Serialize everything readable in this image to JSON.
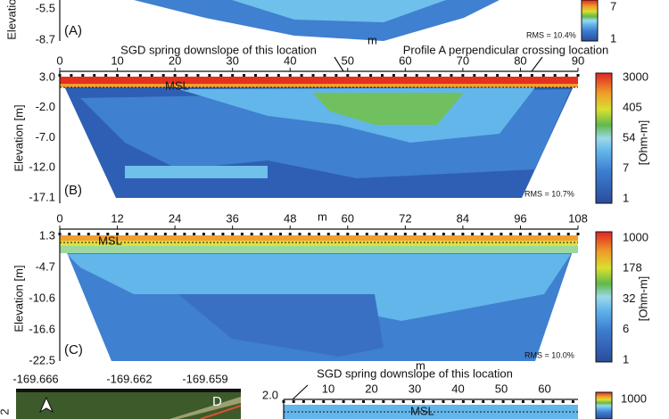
{
  "panel_a": {
    "y_axis_label": "Elevation",
    "y_ticks": [
      "-5.5",
      "-8.7"
    ],
    "label": "(A)",
    "rms": "RMS = 10.4%",
    "colorbar_ticks": [
      "7",
      "1"
    ]
  },
  "panel_b": {
    "x_axis_label": "m",
    "x_ticks": [
      "0",
      "10",
      "20",
      "30",
      "40",
      "50",
      "60",
      "70",
      "80",
      "90"
    ],
    "y_axis_label": "Elevation [m]",
    "y_ticks": [
      "3.0",
      "-2.0",
      "-7.0",
      "-12.0",
      "-17.1"
    ],
    "annotations": [
      "SGD spring downslope of this location",
      "Profile A perpendicular crossing location"
    ],
    "msl": "MSL",
    "label": "(B)",
    "rms": "RMS = 10.7%",
    "colorbar_ticks": [
      "3000",
      "405",
      "54",
      "7",
      "1"
    ],
    "colorbar_label": "[Ohm-m]"
  },
  "panel_c": {
    "x_axis_label": "m",
    "x_ticks": [
      "0",
      "12",
      "24",
      "36",
      "48",
      "60",
      "72",
      "84",
      "96",
      "108"
    ],
    "y_axis_label": "Elevation [m]",
    "y_ticks": [
      "1.3",
      "-4.7",
      "-10.6",
      "-16.6",
      "-22.5"
    ],
    "msl": "MSL",
    "label": "(C)",
    "rms": "RMS = 10.0%",
    "colorbar_ticks": [
      "1000",
      "178",
      "32",
      "6",
      "1"
    ],
    "colorbar_label": "[Ohm-m]"
  },
  "panel_d": {
    "map_ticks": [
      "-169.666",
      "-169.662",
      "-169.659"
    ],
    "map_label": "D",
    "y_axis_label": "2",
    "annotation": "SGD spring downslope of this location",
    "x_axis_label": "m",
    "x_ticks": [
      "10",
      "20",
      "30",
      "40",
      "50",
      "60"
    ],
    "y_ticks": [
      "2.0"
    ],
    "msl": "MSL",
    "colorbar_ticks": [
      "1000"
    ]
  }
}
